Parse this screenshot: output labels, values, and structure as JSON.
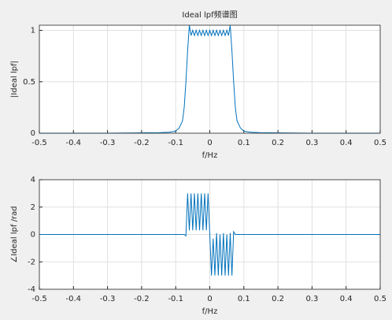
{
  "chart_data": [
    {
      "type": "line",
      "title": "Ideal lpf频谱图",
      "xlabel": "f/Hz",
      "ylabel": "|Ideal lpf|",
      "color": "#0072bd",
      "grid": true,
      "xlim": [
        -0.5,
        0.5
      ],
      "xticks": [
        -0.5,
        -0.4,
        -0.3,
        -0.2,
        -0.1,
        0,
        0.1,
        0.2,
        0.3,
        0.4,
        0.5
      ],
      "ylim": [
        0,
        1.05
      ],
      "yticks": [
        0,
        0.5,
        1
      ],
      "x": [
        -0.5,
        -0.3,
        -0.15,
        -0.12,
        -0.1,
        -0.09,
        -0.08,
        -0.075,
        -0.07,
        -0.065,
        -0.06,
        -0.055,
        -0.05,
        -0.045,
        -0.04,
        -0.035,
        -0.03,
        -0.025,
        -0.02,
        -0.015,
        -0.01,
        -0.005,
        0,
        0.005,
        0.01,
        0.015,
        0.02,
        0.025,
        0.03,
        0.035,
        0.04,
        0.045,
        0.05,
        0.055,
        0.06,
        0.065,
        0.07,
        0.075,
        0.08,
        0.09,
        0.1,
        0.12,
        0.15,
        0.3,
        0.5
      ],
      "values": [
        0,
        0,
        0.005,
        0.01,
        0.02,
        0.05,
        0.12,
        0.25,
        0.5,
        0.8,
        1.05,
        0.95,
        1,
        0.95,
        1,
        0.95,
        1,
        0.95,
        1,
        0.95,
        1,
        0.95,
        1,
        0.95,
        1,
        0.95,
        1,
        0.95,
        1,
        0.95,
        1,
        0.95,
        1,
        0.95,
        1.05,
        0.8,
        0.5,
        0.25,
        0.12,
        0.05,
        0.02,
        0.01,
        0.005,
        0,
        0
      ]
    },
    {
      "type": "line",
      "xlabel": "f/Hz",
      "ylabel": "∠Ideal lpf /rad",
      "color": "#0072bd",
      "grid": true,
      "xlim": [
        -0.5,
        0.5
      ],
      "xticks": [
        -0.5,
        -0.4,
        -0.3,
        -0.2,
        -0.1,
        0,
        0.1,
        0.2,
        0.3,
        0.4,
        0.5
      ],
      "ylim": [
        -4,
        4
      ],
      "yticks": [
        -4,
        -2,
        0,
        2,
        4
      ],
      "x": [
        -0.5,
        -0.075,
        -0.07,
        -0.065,
        -0.06,
        -0.055,
        -0.05,
        -0.045,
        -0.04,
        -0.035,
        -0.03,
        -0.025,
        -0.02,
        -0.015,
        -0.01,
        -0.005,
        0,
        0.005,
        0.01,
        0.015,
        0.02,
        0.025,
        0.03,
        0.035,
        0.04,
        0.045,
        0.05,
        0.055,
        0.06,
        0.065,
        0.07,
        0.075,
        0.5
      ],
      "values": [
        0,
        0,
        -0.1,
        3,
        0.3,
        3,
        0.3,
        3,
        0.3,
        3,
        0.3,
        3,
        0.3,
        3,
        0.3,
        3,
        0,
        -3,
        -0.3,
        -3,
        0.1,
        -3,
        0,
        -3,
        0.1,
        -3,
        0,
        -3,
        0.1,
        -3,
        0.2,
        0,
        0
      ]
    }
  ]
}
